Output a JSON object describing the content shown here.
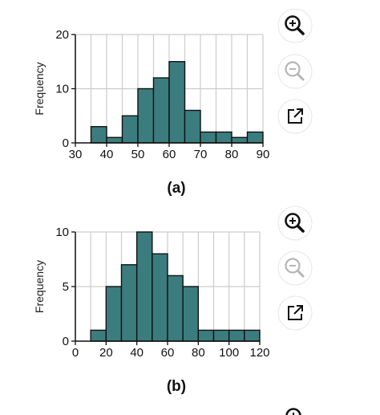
{
  "colors": {
    "bar_fill": "#3b7d7e",
    "bar_stroke": "#111111",
    "grid": "#cccccc",
    "axis": "#111111",
    "icon_circle": "#ffffff",
    "icon_active": "#111111",
    "icon_disabled": "#b5b5b5"
  },
  "icons": {
    "zoom_in": "zoom-in-icon",
    "zoom_out": "zoom-out-icon",
    "popout": "external-link-icon"
  },
  "chart_data": [
    {
      "type": "bar",
      "caption": "(a)",
      "ylabel": "Frequency",
      "xlabel": "",
      "xlim": [
        30,
        90
      ],
      "ylim": [
        0,
        20
      ],
      "xticks": [
        30,
        40,
        50,
        60,
        70,
        80,
        90
      ],
      "yticks": [
        0,
        10,
        20
      ],
      "grid": true,
      "bins": [
        [
          35,
          40
        ],
        [
          40,
          45
        ],
        [
          45,
          50
        ],
        [
          50,
          55
        ],
        [
          55,
          60
        ],
        [
          60,
          65
        ],
        [
          65,
          70
        ],
        [
          70,
          75
        ],
        [
          75,
          80
        ],
        [
          80,
          85
        ],
        [
          85,
          90
        ]
      ],
      "values": [
        3,
        1,
        5,
        10,
        12,
        15,
        6,
        2,
        2,
        1,
        2
      ]
    },
    {
      "type": "bar",
      "caption": "(b)",
      "ylabel": "Frequency",
      "xlabel": "",
      "xlim": [
        0,
        120
      ],
      "ylim": [
        0,
        10
      ],
      "xticks": [
        0,
        20,
        40,
        60,
        80,
        100,
        120
      ],
      "yticks": [
        0,
        5,
        10
      ],
      "grid": true,
      "bins": [
        [
          10,
          20
        ],
        [
          20,
          30
        ],
        [
          30,
          40
        ],
        [
          40,
          50
        ],
        [
          50,
          60
        ],
        [
          60,
          70
        ],
        [
          70,
          80
        ],
        [
          80,
          90
        ],
        [
          90,
          100
        ],
        [
          100,
          110
        ],
        [
          110,
          120
        ]
      ],
      "values": [
        1,
        5,
        7,
        10,
        8,
        6,
        5,
        1,
        1,
        1,
        1
      ]
    }
  ]
}
